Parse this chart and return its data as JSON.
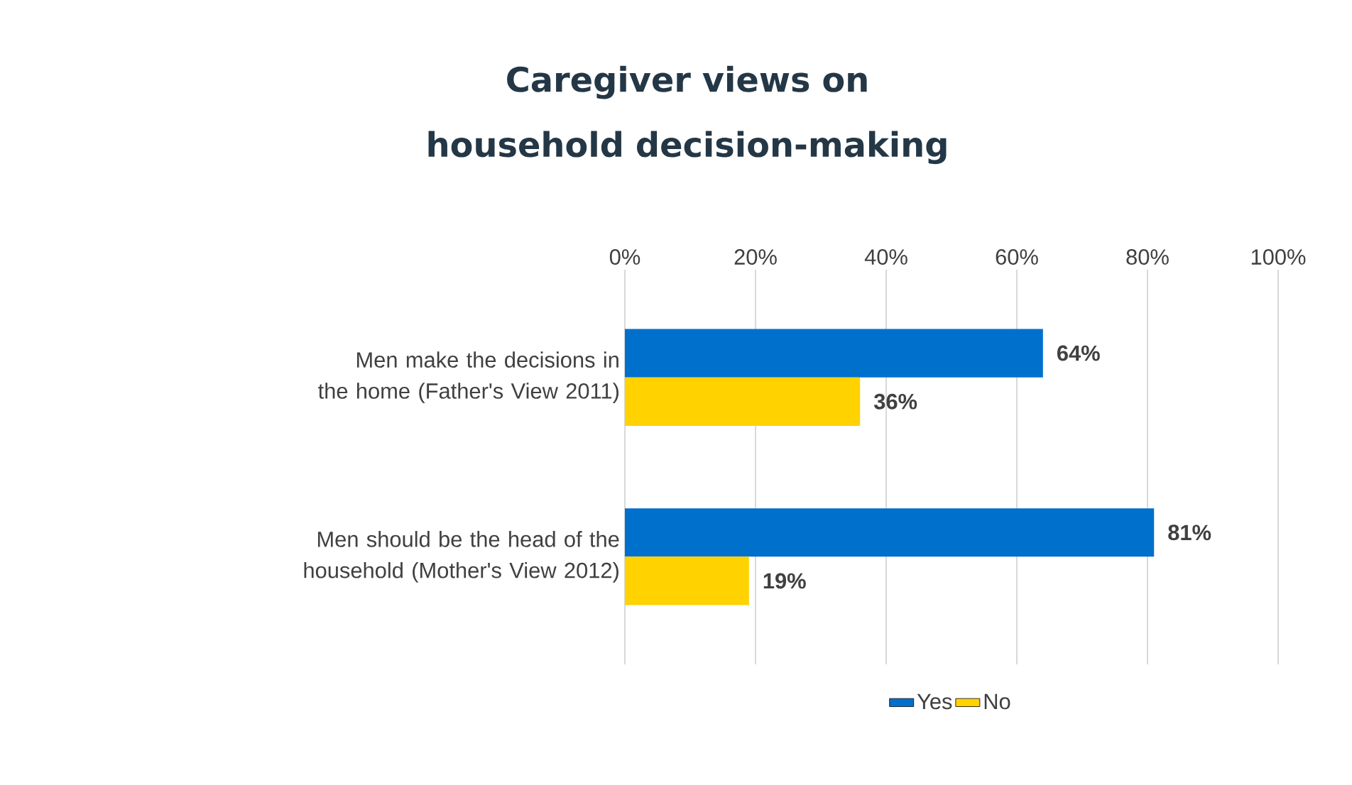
{
  "chart_data": {
    "type": "bar",
    "orientation": "horizontal",
    "title": "Caregiver views on household decision-making",
    "categories": [
      "Men make the decisions in the home (Father's View 2011)",
      "Men should be the head of the household (Mother's View 2012)"
    ],
    "series": [
      {
        "name": "Yes",
        "color": "#0070cd",
        "values": [
          64,
          81
        ],
        "value_labels": [
          "64%",
          "81%"
        ]
      },
      {
        "name": "No",
        "color": "#ffd200",
        "values": [
          36,
          19
        ],
        "value_labels": [
          "36%",
          "19%"
        ]
      }
    ],
    "xlim": [
      0,
      100
    ],
    "xticks": [
      {
        "value": 0,
        "label": "0%"
      },
      {
        "value": 20,
        "label": "20%"
      },
      {
        "value": 40,
        "label": "40%"
      },
      {
        "value": 60,
        "label": "60%"
      },
      {
        "value": 80,
        "label": "80%"
      },
      {
        "value": 100,
        "label": "100%"
      }
    ],
    "grid": "x",
    "legend": "bottom"
  }
}
